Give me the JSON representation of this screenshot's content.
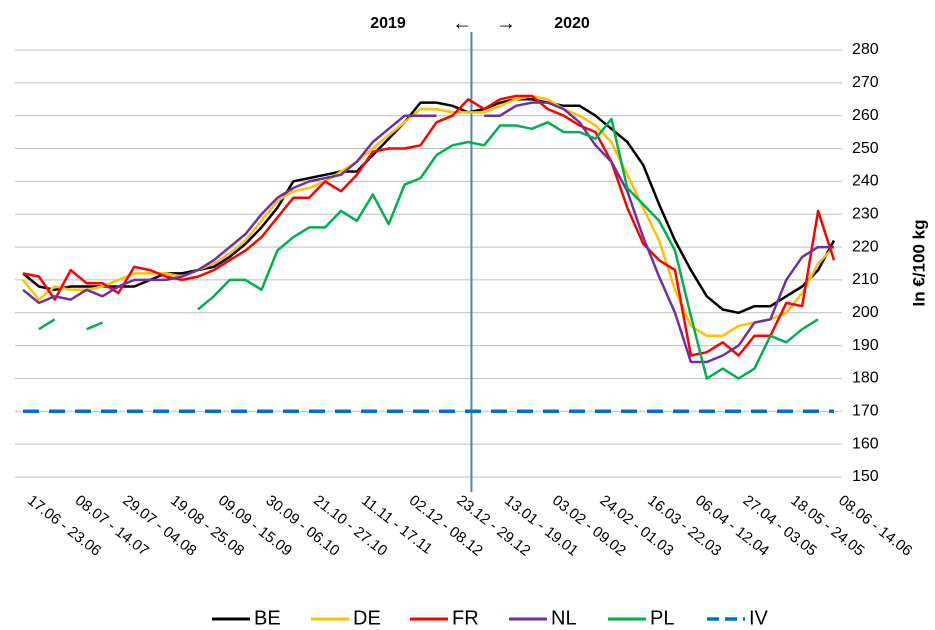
{
  "chart_data": {
    "type": "line",
    "categories": [
      "17.06 - 23.06",
      null,
      null,
      "08.07 - 14.07",
      null,
      null,
      "29.07 - 04.08",
      null,
      null,
      "19.08 - 25.08",
      null,
      null,
      "09.09 - 15.09",
      null,
      null,
      "30.09 - 06.10",
      null,
      null,
      "21.10 - 27.10",
      null,
      null,
      "11.11 - 17.11",
      null,
      null,
      "02.12 - 08.12",
      null,
      null,
      "23.12 - 29.12",
      null,
      null,
      "13.01 - 19.01",
      null,
      null,
      "03.02 - 09.02",
      null,
      null,
      "24.02 - 01.03",
      null,
      null,
      "16.03 - 22.03",
      null,
      null,
      "06.04 - 12.04",
      null,
      null,
      "27.04 - 03.05",
      null,
      null,
      "18.05 - 24.05",
      null,
      null,
      "08.06 - 14.06"
    ],
    "series": [
      {
        "name": "BE",
        "color": "#000000",
        "values": [
          212,
          208,
          207,
          208,
          208,
          208,
          208,
          208,
          210,
          212,
          212,
          213,
          214,
          217,
          221,
          226,
          232,
          240,
          241,
          242,
          243,
          243,
          248,
          253,
          258,
          264,
          264,
          263,
          261,
          262,
          264,
          265,
          265,
          264,
          263,
          263,
          260,
          256,
          252,
          245,
          233,
          222,
          213,
          205,
          201,
          200,
          202,
          202,
          205,
          208,
          213,
          222
        ]
      },
      {
        "name": "DE",
        "color": "#ffc000",
        "values": [
          210,
          204,
          208,
          207,
          207,
          208,
          210,
          212,
          212,
          212,
          211,
          213,
          215,
          218,
          222,
          228,
          234,
          237,
          238,
          240,
          243,
          246,
          250,
          254,
          258,
          262,
          262,
          261,
          261,
          261,
          263,
          265,
          266,
          265,
          262,
          260,
          257,
          252,
          242,
          232,
          222,
          207,
          196,
          193,
          193,
          196,
          197,
          198,
          200,
          206,
          215,
          220
        ]
      },
      {
        "name": "FR",
        "color": "#ff0000",
        "values": [
          212,
          211,
          204,
          213,
          209,
          209,
          206,
          214,
          213,
          211,
          210,
          211,
          213,
          216,
          219,
          223,
          229,
          235,
          235,
          240,
          237,
          242,
          249,
          250,
          250,
          251,
          258,
          260,
          265,
          262,
          265,
          266,
          266,
          262,
          260,
          257,
          255,
          246,
          232,
          221,
          216,
          213,
          187,
          188,
          191,
          187,
          193,
          193,
          203,
          202,
          231,
          216
        ]
      },
      {
        "name": "NL",
        "color": "#7030a0",
        "values": [
          207,
          203,
          205,
          204,
          207,
          205,
          208,
          210,
          210,
          210,
          211,
          213,
          216,
          220,
          224,
          230,
          235,
          238,
          240,
          241,
          242,
          246,
          252,
          256,
          260,
          260,
          260,
          null,
          null,
          260,
          260,
          263,
          264,
          264,
          262,
          258,
          251,
          246,
          237,
          223,
          211,
          200,
          185,
          185,
          187,
          190,
          197,
          198,
          210,
          217,
          220,
          220
        ]
      },
      {
        "name": "PL",
        "color": "#00b050",
        "values": [
          null,
          195,
          198,
          null,
          195,
          197,
          null,
          null,
          null,
          null,
          null,
          201,
          205,
          210,
          210,
          207,
          219,
          223,
          226,
          226,
          231,
          228,
          236,
          227,
          239,
          241,
          248,
          251,
          252,
          251,
          257,
          257,
          256,
          258,
          255,
          255,
          253,
          259,
          238,
          233,
          228,
          219,
          199,
          180,
          183,
          180,
          183,
          193,
          191,
          195,
          198,
          null
        ]
      },
      {
        "name": "IV",
        "color": "#0070c0",
        "dashed": true,
        "values": [
          170,
          170,
          170,
          170,
          170,
          170,
          170,
          170,
          170,
          170,
          170,
          170,
          170,
          170,
          170,
          170,
          170,
          170,
          170,
          170,
          170,
          170,
          170,
          170,
          170,
          170,
          170,
          170,
          170,
          170,
          170,
          170,
          170,
          170,
          170,
          170,
          170,
          170,
          170,
          170,
          170,
          170,
          170,
          170,
          170,
          170,
          170,
          170,
          170,
          170,
          170,
          170
        ]
      }
    ],
    "ylim": [
      150,
      280
    ],
    "yticks": [
      150,
      160,
      170,
      180,
      190,
      200,
      210,
      220,
      230,
      240,
      250,
      260,
      270,
      280
    ],
    "grid": true,
    "y_label": "In €/100 kg",
    "annotations": [
      "2019",
      "←",
      "→",
      "2020"
    ]
  }
}
